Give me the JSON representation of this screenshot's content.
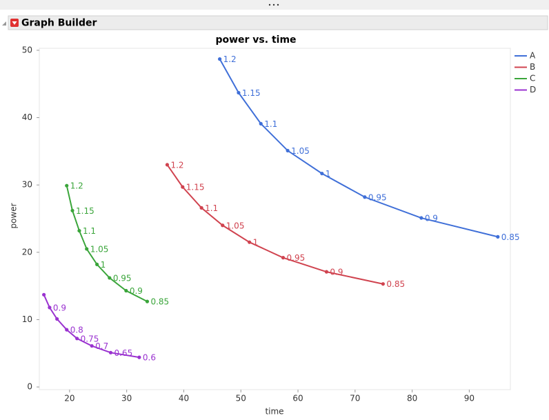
{
  "header": {
    "title": "Graph Builder"
  },
  "chart_data": {
    "type": "line",
    "title": "power vs. time",
    "x_label": "time",
    "y_label": "power",
    "xlim": [
      14.7,
      97.2
    ],
    "ylim": [
      -0.4,
      50.3
    ],
    "xticks": [
      20,
      30,
      40,
      50,
      60,
      70,
      80,
      90
    ],
    "yticks": [
      0,
      10,
      20,
      30,
      40,
      50
    ],
    "legend": "top-right",
    "series": [
      {
        "name": "A",
        "color": "#3f6fd8",
        "x": [
          46.3,
          49.6,
          53.5,
          58.2,
          64.2,
          71.7,
          81.6,
          95.0
        ],
        "values": [
          48.7,
          43.7,
          39.1,
          35.1,
          31.7,
          28.2,
          25.1,
          22.3
        ],
        "point_labels": [
          1.2,
          1.15,
          1.1,
          1.05,
          1,
          0.95,
          0.9,
          0.85
        ]
      },
      {
        "name": "B",
        "color": "#d0434f",
        "x": [
          37.1,
          39.8,
          43.1,
          46.8,
          51.5,
          57.4,
          65.0,
          74.9
        ],
        "values": [
          33.0,
          29.7,
          26.6,
          24.0,
          21.5,
          19.2,
          17.1,
          15.3
        ],
        "point_labels": [
          1.2,
          1.15,
          1.1,
          1.05,
          1,
          0.95,
          0.9,
          0.85
        ]
      },
      {
        "name": "C",
        "color": "#3aa53a",
        "x": [
          19.5,
          20.5,
          21.7,
          23.0,
          24.8,
          27.0,
          29.9,
          33.6
        ],
        "values": [
          29.9,
          26.2,
          23.2,
          20.5,
          18.2,
          16.2,
          14.3,
          12.7
        ],
        "point_labels": [
          1.2,
          1.15,
          1.1,
          1.05,
          1,
          0.95,
          0.9,
          0.85
        ]
      },
      {
        "name": "D",
        "color": "#9a32d0",
        "x": [
          15.5,
          16.5,
          17.8,
          19.5,
          21.3,
          23.9,
          27.2,
          32.2
        ],
        "values": [
          13.7,
          11.8,
          10.1,
          8.5,
          7.2,
          6.1,
          5.1,
          4.4
        ],
        "point_labels": [
          null,
          0.9,
          null,
          0.8,
          0.75,
          0.7,
          0.65,
          0.6
        ]
      }
    ]
  }
}
